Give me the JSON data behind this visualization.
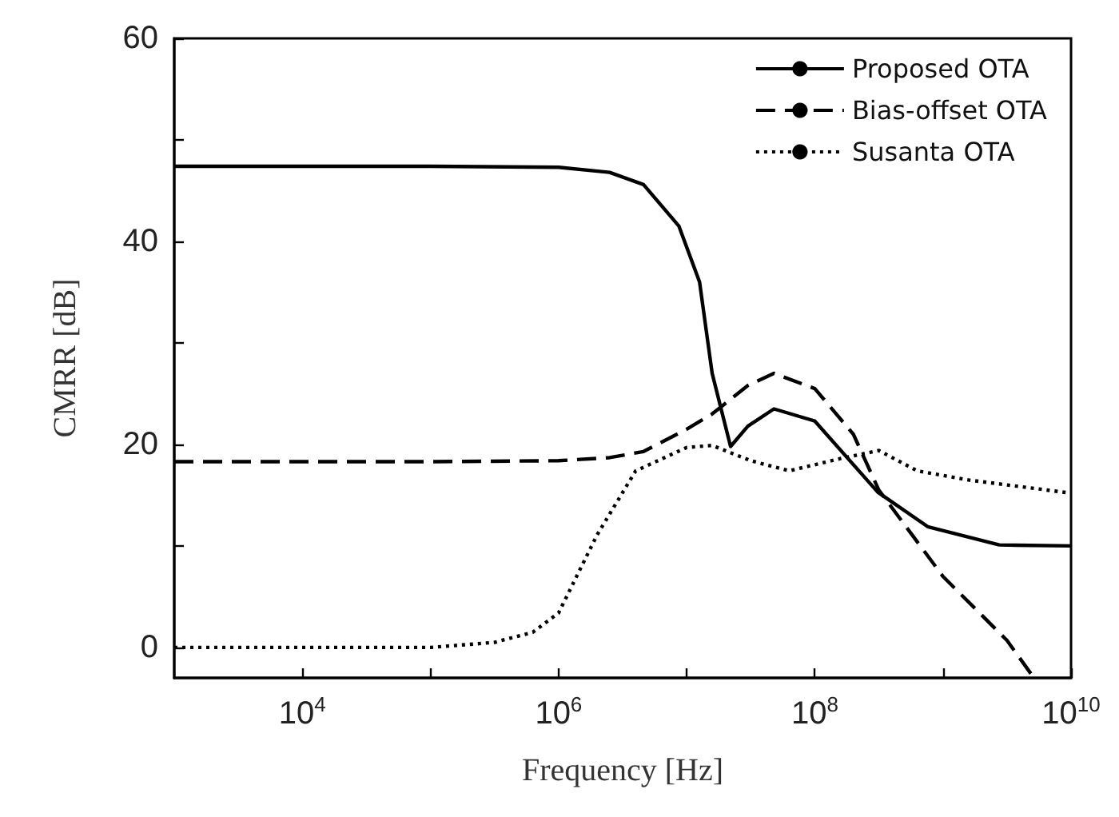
{
  "chart_data": {
    "type": "line",
    "xlabel": "Frequency [Hz]",
    "ylabel": "CMRR [dB]",
    "log": "x",
    "grid": false,
    "legend": "top right",
    "marker": "none",
    "xlim": [
      1000,
      10000000000
    ],
    "ylim": [
      -3,
      60
    ],
    "xticks": [
      {
        "value": 10000,
        "label": "10$^{4}$"
      },
      {
        "value": 100000,
        "label": null
      },
      {
        "value": 1000000,
        "label": "10$^{6}$"
      },
      {
        "value": 10000000,
        "label": null
      },
      {
        "value": 100000000,
        "label": "10$^{8}$"
      },
      {
        "value": 1000000000,
        "label": null
      },
      {
        "value": 10000000000,
        "label": "10$^{10}$"
      }
    ],
    "yticks": [
      0,
      {
        "value": 10,
        "label": null
      },
      20,
      {
        "value": 30,
        "label": null
      },
      40,
      {
        "value": 50,
        "label": null
      },
      60
    ],
    "series": [
      {
        "name": "Proposed OTA",
        "color": "#000000",
        "line_style": "solid",
        "x": [
          1000,
          100000,
          1000000,
          2500000,
          4600000,
          8700000,
          12600000,
          15800000,
          22000000,
          30000000,
          48000000,
          100000000,
          310000000,
          760000000,
          2750000000,
          10000000000
        ],
        "values": [
          47.4,
          47.4,
          47.3,
          46.8,
          45.6,
          41.5,
          36,
          27,
          19.8,
          21.8,
          23.5,
          22.3,
          15.3,
          11.9,
          10.1,
          10
        ]
      },
      {
        "name": "Bias-offset OTA",
        "color": "#000000",
        "line_style": "dashed",
        "x": [
          1000,
          100000,
          1000000,
          2500000,
          4600000,
          10000000,
          15800000,
          30000000,
          48000000,
          100000000,
          200000000,
          316000000,
          1000000000,
          3160000000,
          5000000000
        ],
        "values": [
          18.3,
          18.3,
          18.4,
          18.7,
          19.3,
          21.5,
          23,
          25.8,
          27,
          25.5,
          21,
          15.5,
          7,
          0.7,
          -2.8
        ]
      },
      {
        "name": "Susanta OTA",
        "color": "#000000",
        "line_style": "dotted",
        "x": [
          1000,
          100000,
          316000,
          630000,
          1000000,
          2000000,
          4000000,
          10000000,
          15800000,
          31600000,
          63000000,
          158000000,
          316000000,
          630000000,
          1580000000,
          10000000000
        ],
        "values": [
          0,
          0,
          0.5,
          1.5,
          3.4,
          11.1,
          17.4,
          19.7,
          19.9,
          18.4,
          17.4,
          18.6,
          19.4,
          17.4,
          16.5,
          15.2
        ]
      }
    ]
  }
}
